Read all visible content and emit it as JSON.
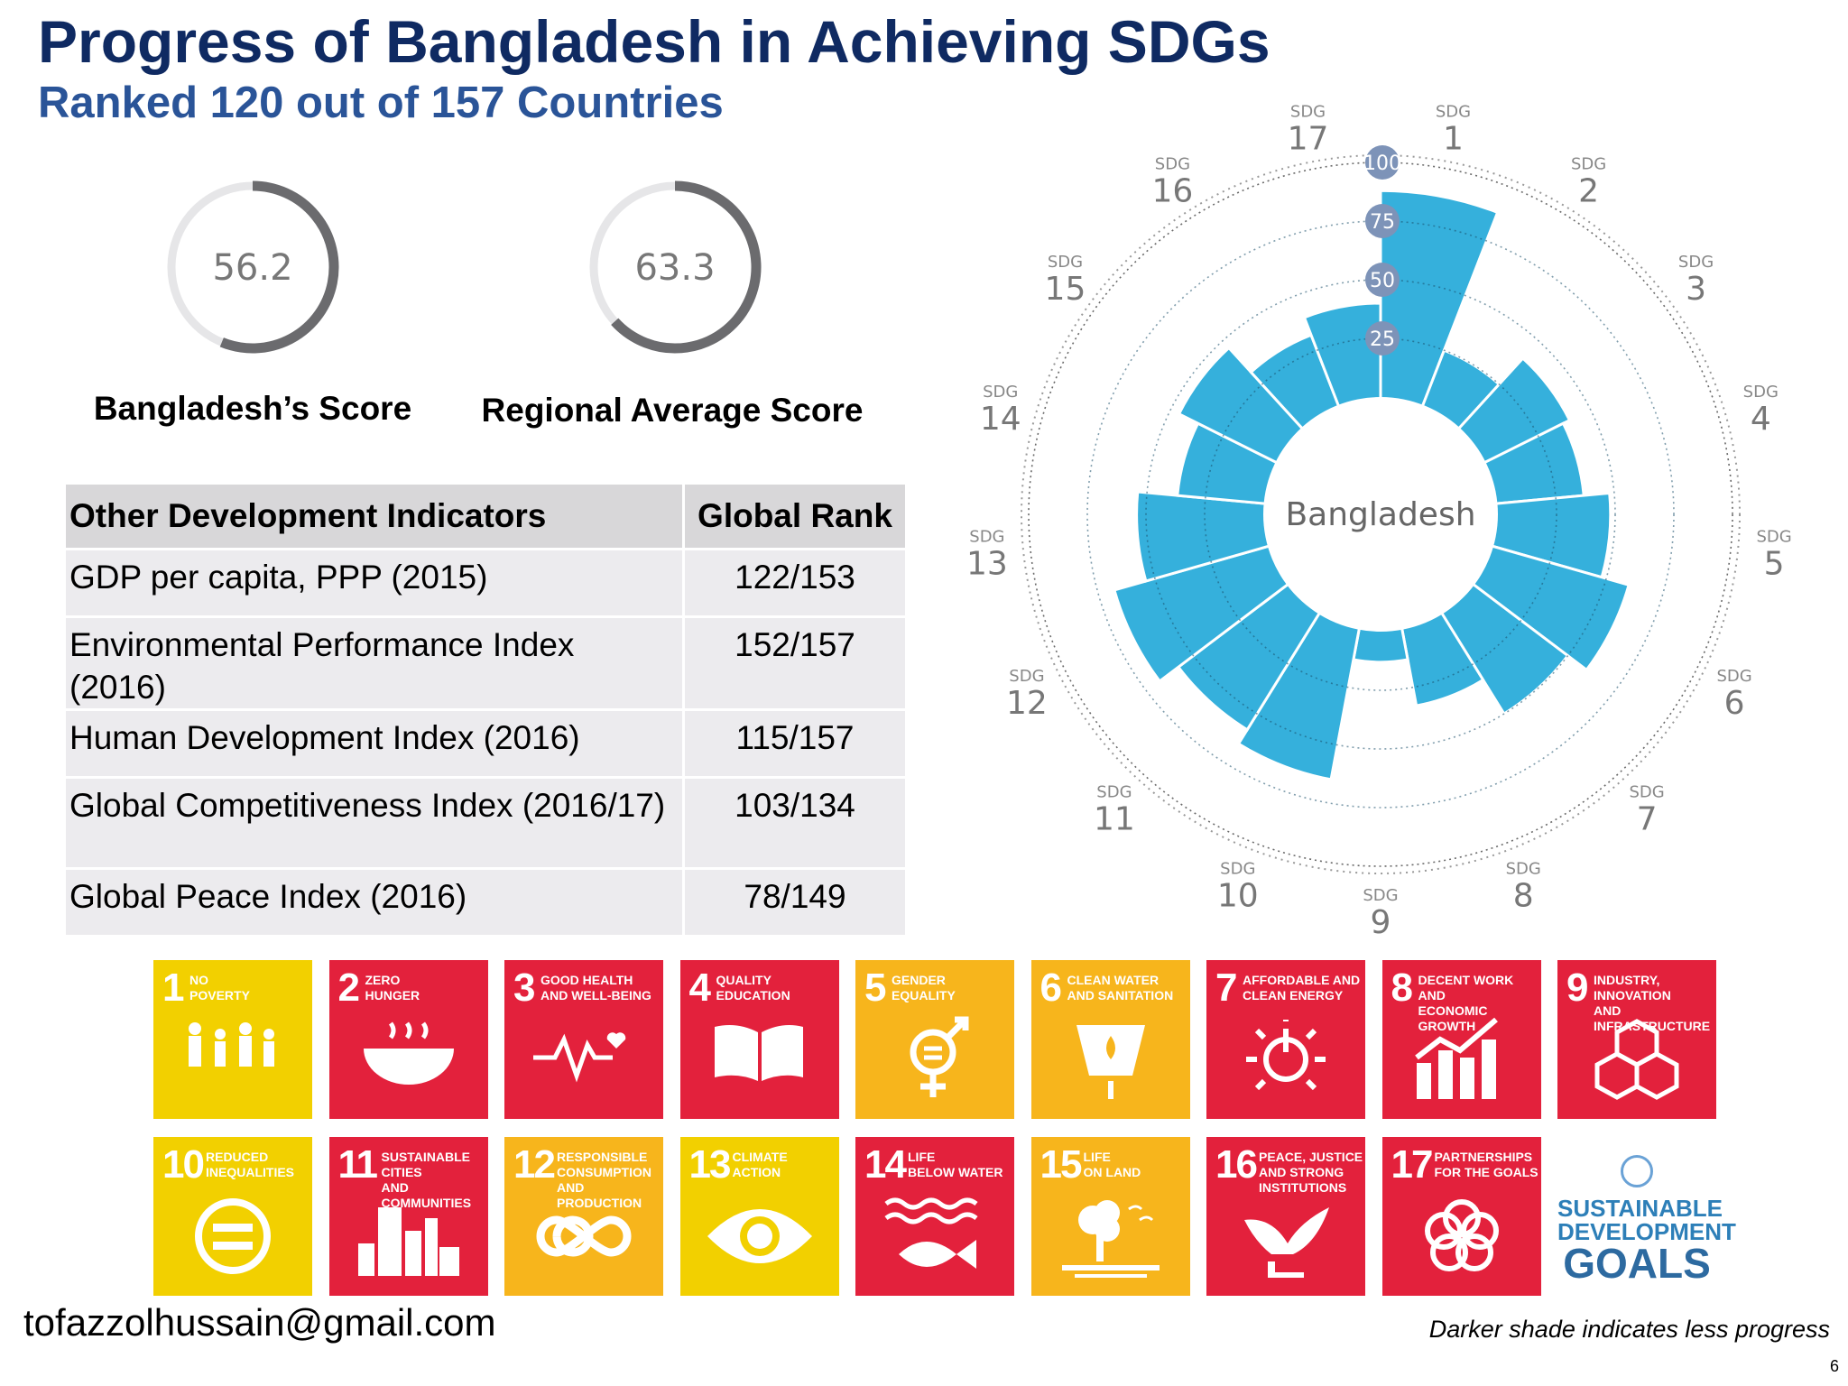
{
  "header": {
    "title": "Progress of Bangladesh in Achieving SDGs",
    "subtitle": "Ranked 120 out of 157 Countries"
  },
  "gauges": [
    {
      "value": "56.2",
      "fraction": 0.562,
      "label": "Bangladesh’s Score"
    },
    {
      "value": "63.3",
      "fraction": 0.633,
      "label": "Regional Average Score"
    }
  ],
  "table": {
    "headers": [
      "Other Development Indicators",
      "Global Rank"
    ],
    "rows": [
      {
        "indicator": "GDP per capita, PPP (2015)",
        "rank": "122/153"
      },
      {
        "indicator": "Environmental Performance Index (2016)",
        "rank": "152/157"
      },
      {
        "indicator": "Human Development Index (2016)",
        "rank": "115/157"
      },
      {
        "indicator": "Global Competitiveness Index (2016/17)",
        "rank": "103/134"
      },
      {
        "indicator": "Global Peace Index (2016)",
        "rank": "78/149"
      }
    ]
  },
  "chart_data": {
    "type": "polar-bar",
    "center_label": "Bangladesh",
    "category_prefix": "SDG",
    "categories": [
      "1",
      "2",
      "3",
      "4",
      "5",
      "6",
      "7",
      "8",
      "9",
      "10",
      "11",
      "12",
      "13",
      "14",
      "15",
      "16",
      "17"
    ],
    "values": [
      88,
      25,
      40,
      37,
      48,
      60,
      50,
      33,
      13,
      65,
      58,
      68,
      54,
      37,
      46,
      32,
      40
    ],
    "ring_labels": [
      "25",
      "50",
      "75",
      "100"
    ],
    "ylim": [
      0,
      100
    ],
    "bar_color": "#35b0dc"
  },
  "sdg_tiles": [
    {
      "num": "1",
      "caption": "NO\nPOVERTY",
      "color": "#f2d000",
      "icon": "family-icon"
    },
    {
      "num": "2",
      "caption": "ZERO\nHUNGER",
      "color": "#e3213c",
      "icon": "bowl-icon"
    },
    {
      "num": "3",
      "caption": "GOOD HEALTH\nAND WELL-BEING",
      "color": "#e3213c",
      "icon": "heartbeat-icon"
    },
    {
      "num": "4",
      "caption": "QUALITY\nEDUCATION",
      "color": "#e3213c",
      "icon": "book-icon"
    },
    {
      "num": "5",
      "caption": "GENDER\nEQUALITY",
      "color": "#f7b51c",
      "icon": "gender-icon"
    },
    {
      "num": "6",
      "caption": "CLEAN WATER\nAND SANITATION",
      "color": "#f7b51c",
      "icon": "water-icon"
    },
    {
      "num": "7",
      "caption": "AFFORDABLE AND\nCLEAN ENERGY",
      "color": "#e3213c",
      "icon": "power-icon"
    },
    {
      "num": "8",
      "caption": "DECENT WORK AND\nECONOMIC GROWTH",
      "color": "#e3213c",
      "icon": "growth-chart-icon"
    },
    {
      "num": "9",
      "caption": "INDUSTRY, INNOVATION\nAND INFRASTRUCTURE",
      "color": "#e3213c",
      "icon": "cubes-icon"
    },
    {
      "num": "10",
      "caption": "REDUCED\nINEQUALITIES",
      "color": "#f2d000",
      "icon": "equal-icon"
    },
    {
      "num": "11",
      "caption": "SUSTAINABLE CITIES\nAND COMMUNITIES",
      "color": "#e3213c",
      "icon": "city-icon"
    },
    {
      "num": "12",
      "caption": "RESPONSIBLE\nCONSUMPTION\nAND PRODUCTION",
      "color": "#f7b51c",
      "icon": "infinity-icon"
    },
    {
      "num": "13",
      "caption": "CLIMATE\nACTION",
      "color": "#f2d000",
      "icon": "eye-globe-icon"
    },
    {
      "num": "14",
      "caption": "LIFE\nBELOW WATER",
      "color": "#e3213c",
      "icon": "fish-icon"
    },
    {
      "num": "15",
      "caption": "LIFE\nON LAND",
      "color": "#f7b51c",
      "icon": "tree-icon"
    },
    {
      "num": "16",
      "caption": "PEACE, JUSTICE\nAND STRONG\nINSTITUTIONS",
      "color": "#e3213c",
      "icon": "dove-icon"
    },
    {
      "num": "17",
      "caption": "PARTNERSHIPS\nFOR THE GOALS",
      "color": "#e3213c",
      "icon": "rings-icon"
    }
  ],
  "logo": {
    "line1": "SUSTAINABLE",
    "line2": "DEVELOPMENT",
    "line3": "GOALS"
  },
  "footer": {
    "email": "tofazzolhussain@gmail.com",
    "note": "Darker shade indicates less progress",
    "page": "6"
  }
}
